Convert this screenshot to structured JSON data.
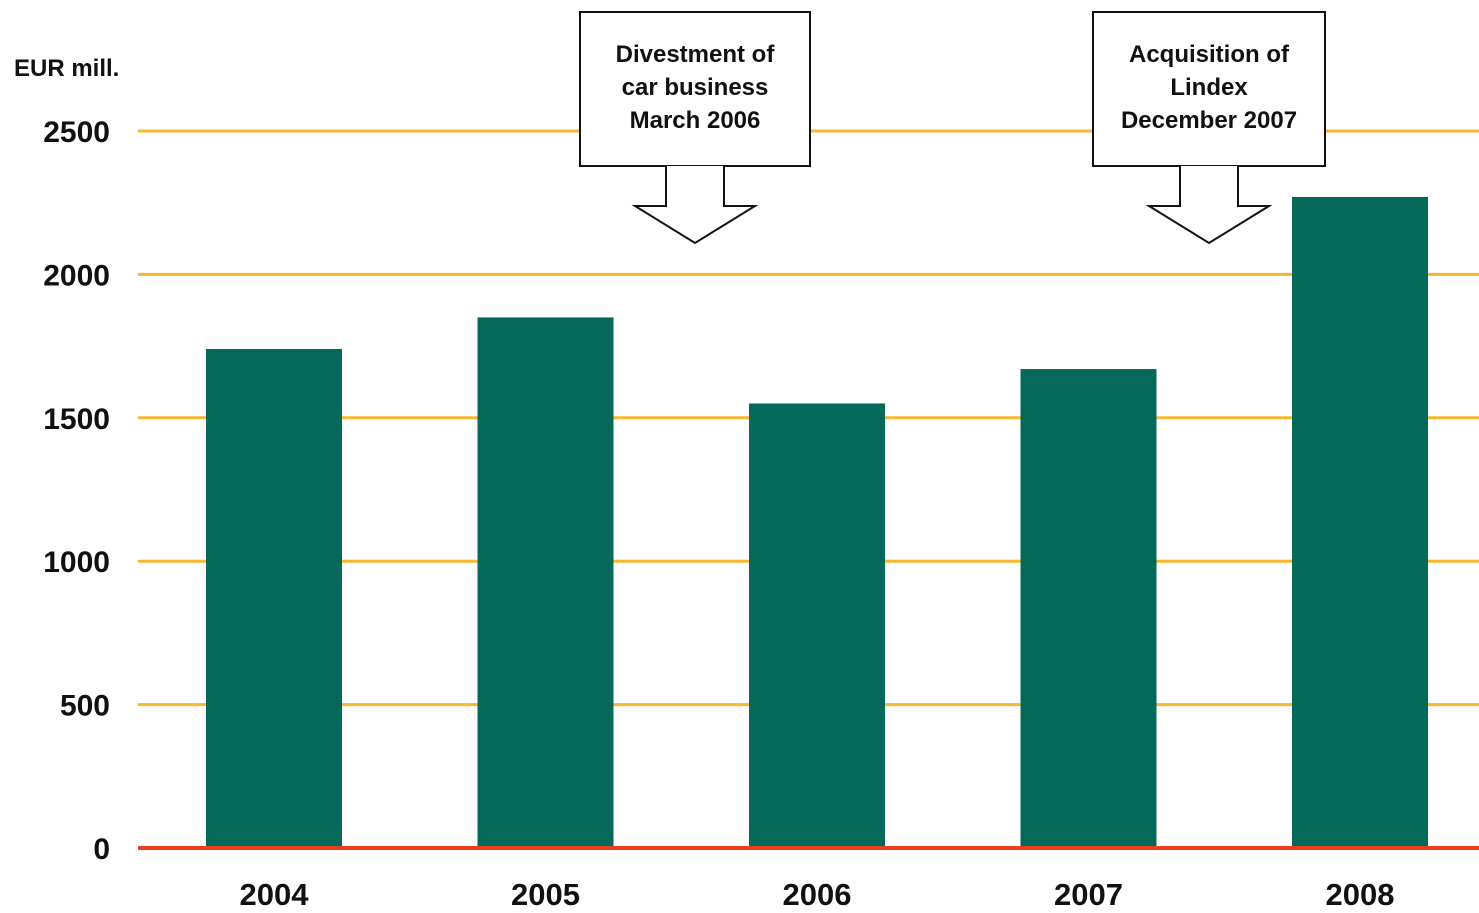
{
  "chart_data": {
    "type": "bar",
    "ylabel": "EUR mill.",
    "categories": [
      "2004",
      "2005",
      "2006",
      "2007",
      "2008"
    ],
    "values": [
      1740,
      1850,
      1550,
      1670,
      2270
    ],
    "ylim": [
      0,
      2500
    ],
    "yticks": [
      "0",
      "500",
      "1000",
      "1500",
      "2000",
      "2500"
    ],
    "grid": true,
    "annotations": [
      {
        "lines": [
          "Divestment of",
          "car business",
          "March 2006"
        ],
        "between": [
          "2005",
          "2006"
        ]
      },
      {
        "lines": [
          "Acquisition of",
          "Lindex",
          "December 2007"
        ],
        "between": [
          "2007",
          "2008"
        ]
      }
    ]
  },
  "colors": {
    "bar": "#05695a",
    "gridline": "#f7b731",
    "baseline": "#e8401c",
    "text": "#111111"
  }
}
